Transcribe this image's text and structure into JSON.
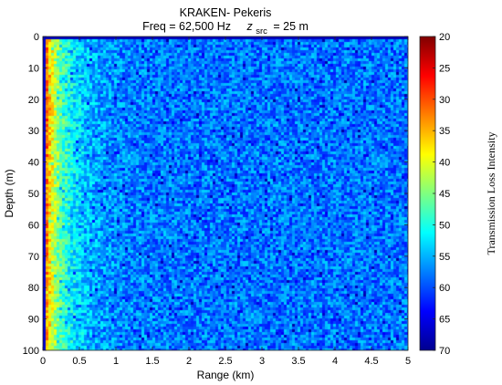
{
  "chart_data": {
    "type": "heatmap",
    "title": "KRAKEN- Pekeris",
    "subtitle": {
      "freq_text": "Freq = 62,500 Hz",
      "z_symbol": "z",
      "z_subscript": "src",
      "z_value_text": "= 25 m"
    },
    "xlabel": "Range (km)",
    "ylabel": "Depth (m)",
    "xlim": [
      0,
      5
    ],
    "ylim": [
      0,
      100
    ],
    "y_reversed": true,
    "xticks": [
      "0",
      "0.5",
      "1",
      "1.5",
      "2",
      "2.5",
      "3",
      "3.5",
      "4",
      "4.5",
      "5"
    ],
    "yticks": [
      "0",
      "10",
      "20",
      "30",
      "40",
      "50",
      "60",
      "70",
      "80",
      "90",
      "100"
    ],
    "colorbar": {
      "label": "Transmission Loss Intensity",
      "range": [
        20,
        70
      ],
      "reversed": true,
      "ticks": [
        "20",
        "25",
        "30",
        "35",
        "40",
        "45",
        "50",
        "55",
        "60",
        "65",
        "70"
      ],
      "colormap": "jet"
    },
    "source_depth_m": 25,
    "frequency_hz": 62500,
    "field_description_values": {
      "near_source_tl_db": 25,
      "near_field_tl_db": 40,
      "far_field_mean_tl_db": 58
    }
  }
}
